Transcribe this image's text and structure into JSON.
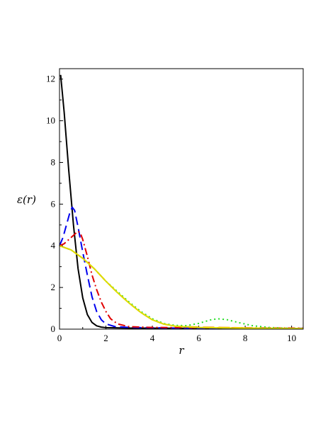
{
  "chart_data": {
    "type": "line",
    "xlabel": "r",
    "ylabel": "ε(r)",
    "xlim": [
      0,
      10.5
    ],
    "ylim": [
      0,
      12.5
    ],
    "xticks": [
      0,
      2,
      4,
      6,
      8,
      10
    ],
    "yticks": [
      0,
      2,
      4,
      6,
      8,
      10,
      12
    ],
    "xtick_labels": [
      "0",
      "2",
      "4",
      "6",
      "8",
      "10"
    ],
    "ytick_labels": [
      "0",
      "2",
      "4",
      "6",
      "8",
      "10",
      "12"
    ],
    "grid": false,
    "series": [
      {
        "color": "#000000",
        "style": "solid",
        "points": [
          [
            0.05,
            12.2
          ],
          [
            0.2,
            10.4
          ],
          [
            0.4,
            7.6
          ],
          [
            0.6,
            5.0
          ],
          [
            0.8,
            2.9
          ],
          [
            1.0,
            1.5
          ],
          [
            1.2,
            0.7
          ],
          [
            1.4,
            0.32
          ],
          [
            1.6,
            0.16
          ],
          [
            1.8,
            0.1
          ],
          [
            2.0,
            0.07
          ],
          [
            3.0,
            0.05
          ],
          [
            5.0,
            0.04
          ],
          [
            8.0,
            0.03
          ],
          [
            10.5,
            0.03
          ]
        ]
      },
      {
        "color": "#0000ee",
        "style": "dashed",
        "points": [
          [
            0.0,
            4.0
          ],
          [
            0.15,
            4.4
          ],
          [
            0.3,
            5.0
          ],
          [
            0.45,
            5.6
          ],
          [
            0.55,
            5.85
          ],
          [
            0.65,
            5.7
          ],
          [
            0.8,
            4.9
          ],
          [
            1.0,
            3.7
          ],
          [
            1.2,
            2.6
          ],
          [
            1.4,
            1.55
          ],
          [
            1.6,
            0.85
          ],
          [
            1.8,
            0.45
          ],
          [
            2.0,
            0.25
          ],
          [
            2.4,
            0.12
          ],
          [
            3.0,
            0.08
          ],
          [
            5.0,
            0.05
          ],
          [
            10.5,
            0.04
          ]
        ]
      },
      {
        "color": "#e00000",
        "style": "dashdot",
        "points": [
          [
            0.0,
            4.0
          ],
          [
            0.2,
            4.1
          ],
          [
            0.4,
            4.3
          ],
          [
            0.6,
            4.5
          ],
          [
            0.8,
            4.7
          ],
          [
            0.9,
            4.6
          ],
          [
            1.0,
            4.3
          ],
          [
            1.2,
            3.5
          ],
          [
            1.4,
            2.6
          ],
          [
            1.6,
            1.9
          ],
          [
            1.8,
            1.3
          ],
          [
            2.0,
            0.85
          ],
          [
            2.2,
            0.5
          ],
          [
            2.5,
            0.25
          ],
          [
            3.0,
            0.12
          ],
          [
            4.0,
            0.08
          ],
          [
            10.5,
            0.05
          ]
        ]
      },
      {
        "color": "#22dd22",
        "style": "dotted",
        "points": [
          [
            0.0,
            4.0
          ],
          [
            0.5,
            3.8
          ],
          [
            1.0,
            3.4
          ],
          [
            1.5,
            2.9
          ],
          [
            2.0,
            2.3
          ],
          [
            2.5,
            1.8
          ],
          [
            3.0,
            1.3
          ],
          [
            3.5,
            0.85
          ],
          [
            4.0,
            0.5
          ],
          [
            4.5,
            0.27
          ],
          [
            5.0,
            0.18
          ],
          [
            5.5,
            0.17
          ],
          [
            6.0,
            0.28
          ],
          [
            6.5,
            0.44
          ],
          [
            6.8,
            0.5
          ],
          [
            7.2,
            0.46
          ],
          [
            7.7,
            0.32
          ],
          [
            8.3,
            0.17
          ],
          [
            9.0,
            0.08
          ],
          [
            10.0,
            0.04
          ],
          [
            10.5,
            0.03
          ]
        ]
      },
      {
        "color": "#ff9900",
        "style": "longdash",
        "points": [
          [
            0.0,
            4.0
          ],
          [
            0.5,
            3.8
          ],
          [
            1.0,
            3.4
          ],
          [
            1.5,
            2.9
          ],
          [
            2.0,
            2.3
          ],
          [
            2.5,
            1.75
          ],
          [
            3.0,
            1.25
          ],
          [
            3.5,
            0.8
          ],
          [
            4.0,
            0.45
          ],
          [
            4.5,
            0.24
          ],
          [
            5.0,
            0.14
          ],
          [
            6.0,
            0.1
          ],
          [
            7.0,
            0.08
          ],
          [
            8.0,
            0.06
          ],
          [
            9.0,
            0.04
          ],
          [
            10.5,
            0.03
          ]
        ]
      },
      {
        "color": "#dddd00",
        "style": "solid",
        "points": [
          [
            0.0,
            4.0
          ],
          [
            0.5,
            3.8
          ],
          [
            1.0,
            3.4
          ],
          [
            1.5,
            2.9
          ],
          [
            2.0,
            2.3
          ],
          [
            2.5,
            1.75
          ],
          [
            3.0,
            1.25
          ],
          [
            3.5,
            0.8
          ],
          [
            4.0,
            0.45
          ],
          [
            4.5,
            0.24
          ],
          [
            5.0,
            0.14
          ],
          [
            6.0,
            0.08
          ],
          [
            7.0,
            0.06
          ],
          [
            8.0,
            0.05
          ],
          [
            9.0,
            0.04
          ],
          [
            10.5,
            0.03
          ]
        ]
      }
    ]
  }
}
